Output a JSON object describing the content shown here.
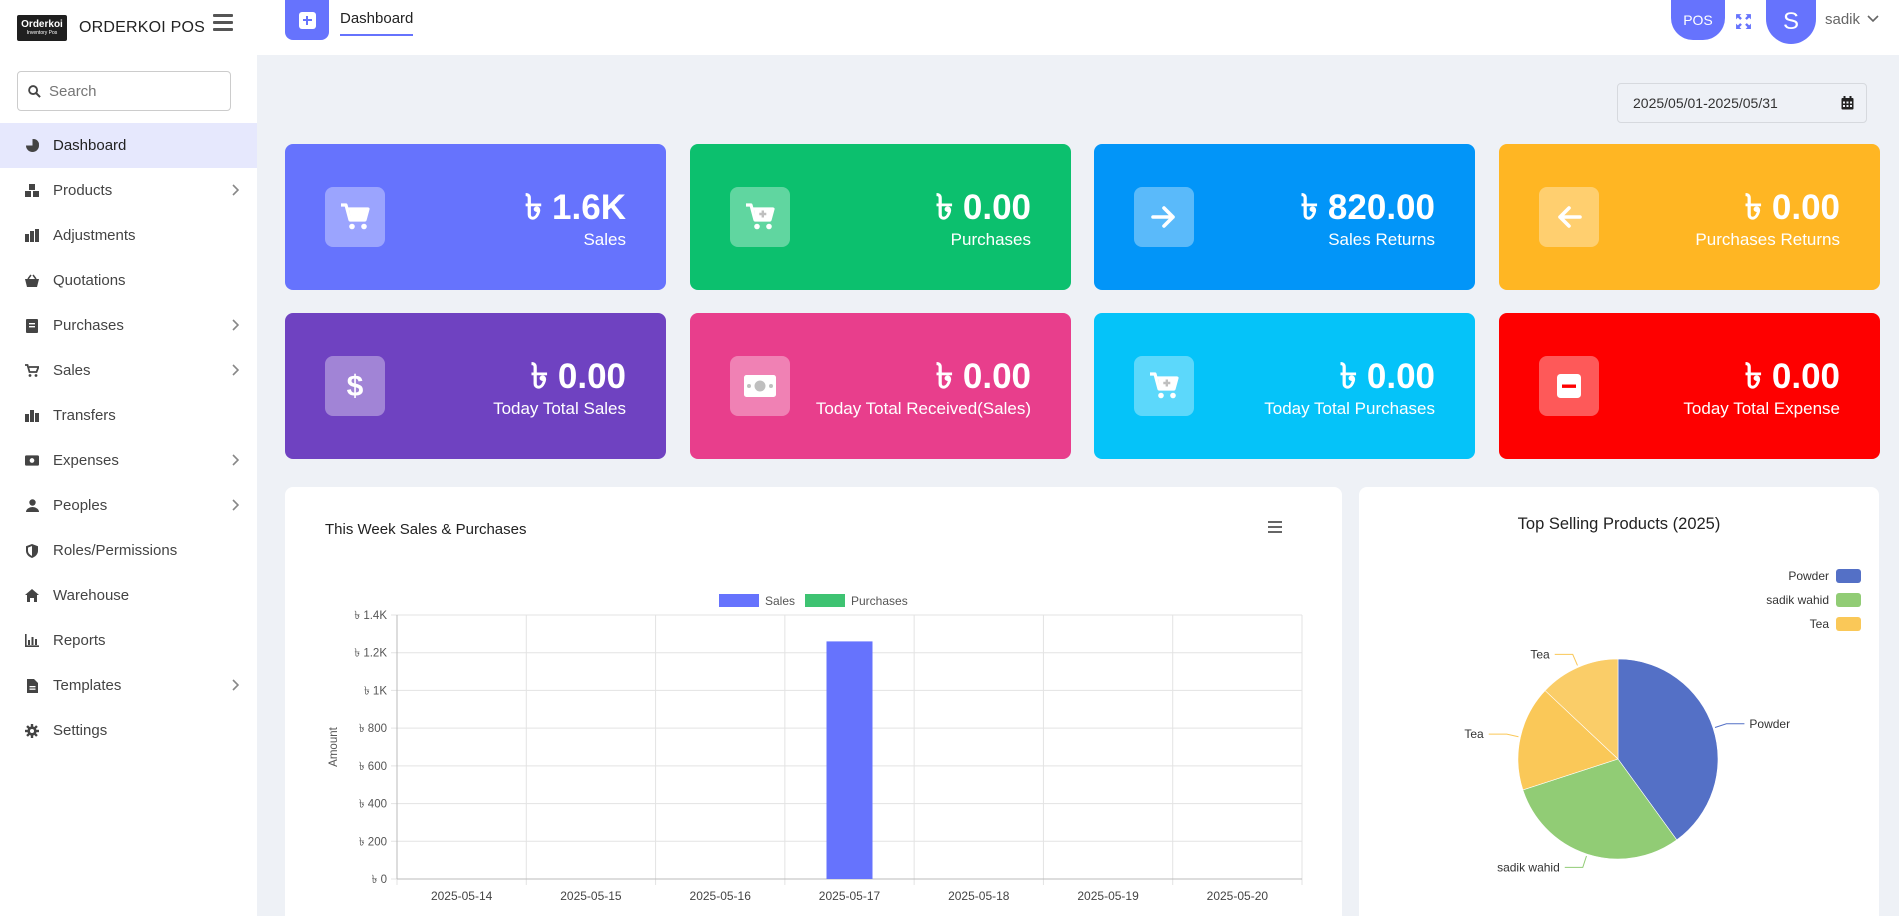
{
  "header": {
    "logo_line1": "Orderkoi",
    "logo_line2": "Inventory Pos",
    "app_name": "ORDERKOI POS",
    "active_tab": "Dashboard",
    "pos_label": "POS",
    "avatar_letter": "S",
    "username": "sadik"
  },
  "sidebar": {
    "search_placeholder": "Search",
    "items": [
      {
        "label": "Dashboard",
        "icon": "pie-chart-icon",
        "active": true,
        "has_children": false
      },
      {
        "label": "Products",
        "icon": "boxes-icon",
        "has_children": true
      },
      {
        "label": "Adjustments",
        "icon": "adjust-icon",
        "has_children": false
      },
      {
        "label": "Quotations",
        "icon": "basket-icon",
        "has_children": false
      },
      {
        "label": "Purchases",
        "icon": "receipt-icon",
        "has_children": true
      },
      {
        "label": "Sales",
        "icon": "cart-icon",
        "has_children": true
      },
      {
        "label": "Transfers",
        "icon": "transfer-icon",
        "has_children": false
      },
      {
        "label": "Expenses",
        "icon": "money-icon",
        "has_children": true
      },
      {
        "label": "Peoples",
        "icon": "user-icon",
        "has_children": true
      },
      {
        "label": "Roles/Permissions",
        "icon": "shield-icon",
        "has_children": false
      },
      {
        "label": "Warehouse",
        "icon": "home-icon",
        "has_children": false
      },
      {
        "label": "Reports",
        "icon": "bar-chart-icon",
        "has_children": false
      },
      {
        "label": "Templates",
        "icon": "file-icon",
        "has_children": true
      },
      {
        "label": "Settings",
        "icon": "gear-icon",
        "has_children": false
      }
    ]
  },
  "date_range": "2025/05/01-2025/05/31",
  "cards": [
    {
      "value": "৳ 1.6K",
      "label": "Sales",
      "color": "#6673fd",
      "icon": "cart-icon"
    },
    {
      "value": "৳ 0.00",
      "label": "Purchases",
      "color": "#0cc06e",
      "icon": "cart-plus-icon"
    },
    {
      "value": "৳ 820.00",
      "label": "Sales Returns",
      "color": "#0295f8",
      "icon": "arrow-right-icon"
    },
    {
      "value": "৳ 0.00",
      "label": "Purchases Returns",
      "color": "#ffb623",
      "icon": "arrow-left-icon"
    },
    {
      "value": "৳ 0.00",
      "label": "Today Total Sales",
      "color": "#6f42c1",
      "icon": "dollar-icon"
    },
    {
      "value": "৳ 0.00",
      "label": "Today Total Received(Sales)",
      "color": "#e83e8c",
      "icon": "money-icon"
    },
    {
      "value": "৳ 0.00",
      "label": "Today Total Purchases",
      "color": "#05c3f9",
      "icon": "cart-plus-icon"
    },
    {
      "value": "৳ 0.00",
      "label": "Today Total Expense",
      "color": "#fe0000",
      "icon": "minus-icon"
    }
  ],
  "weekly_panel": {
    "title": "This Week Sales & Purchases"
  },
  "top_products_panel": {
    "title": "Top Selling Products (2025)"
  },
  "chart_data": [
    {
      "type": "bar",
      "title": "This Week Sales & Purchases",
      "ylabel": "Amount",
      "xlabel": "",
      "categories": [
        "2025-05-14",
        "2025-05-15",
        "2025-05-16",
        "2025-05-17",
        "2025-05-18",
        "2025-05-19",
        "2025-05-20"
      ],
      "series": [
        {
          "name": "Sales",
          "color": "#6673fd",
          "values": [
            0,
            0,
            0,
            1260,
            0,
            0,
            0
          ]
        },
        {
          "name": "Purchases",
          "color": "#3ec372",
          "values": [
            0,
            0,
            0,
            0,
            0,
            0,
            0
          ]
        }
      ],
      "ylim": [
        0,
        1400
      ],
      "yticks": [
        {
          "value": 0,
          "label": "৳ 0"
        },
        {
          "value": 200,
          "label": "৳ 200"
        },
        {
          "value": 400,
          "label": "৳ 400"
        },
        {
          "value": 600,
          "label": "৳ 600"
        },
        {
          "value": 800,
          "label": "৳ 800"
        },
        {
          "value": 1000,
          "label": "৳ 1K"
        },
        {
          "value": 1200,
          "label": "৳ 1.2K"
        },
        {
          "value": 1400,
          "label": "৳ 1.4K"
        }
      ],
      "grid": true,
      "legend": "top-center"
    },
    {
      "type": "pie",
      "title": "Top Selling Products (2025)",
      "slices": [
        {
          "label": "Powder",
          "value": 40,
          "color": "#5470c6"
        },
        {
          "label": "sadik wahid",
          "value": 30,
          "color": "#91cc75"
        },
        {
          "label": "Tea",
          "value": 17,
          "color": "#fac858"
        },
        {
          "label": "Tea",
          "value": 13,
          "color": "#fac858"
        }
      ],
      "legend_entries": [
        {
          "label": "Powder",
          "color": "#5470c6"
        },
        {
          "label": "sadik wahid",
          "color": "#91cc75"
        },
        {
          "label": "Tea",
          "color": "#fac858"
        }
      ],
      "legend": "top-right"
    }
  ]
}
